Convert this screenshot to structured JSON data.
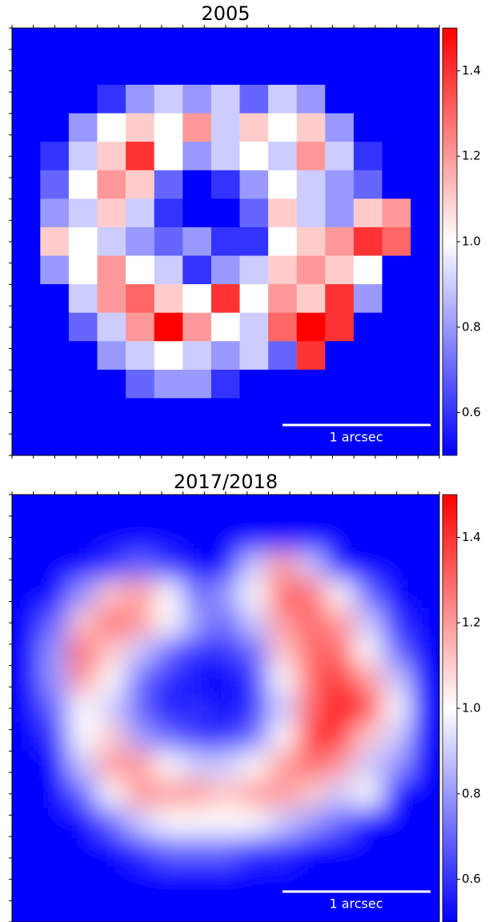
{
  "chart_data": [
    {
      "type": "heatmap",
      "title": "2005",
      "smooth": false,
      "clim": [
        0.5,
        1.5
      ],
      "colormap": [
        "#0000ff",
        "#ffffff",
        "#ff0000"
      ],
      "colorbar_ticks": [
        0.6,
        0.8,
        {
          "value": 1,
          "label": "1.0"
        },
        1.2,
        1.4
      ],
      "scale_bar": "1 arcsec",
      "z": [
        [
          0.5,
          0.5,
          0.5,
          0.5,
          0.5,
          0.5,
          0.5,
          0.5,
          0.5,
          0.5,
          0.5,
          0.5,
          0.5,
          0.5,
          0.5
        ],
        [
          0.5,
          0.5,
          0.5,
          0.5,
          0.5,
          0.5,
          0.5,
          0.5,
          0.5,
          0.5,
          0.5,
          0.5,
          0.5,
          0.5,
          0.5
        ],
        [
          0.5,
          0.5,
          0.5,
          0.6,
          0.8,
          0.9,
          0.8,
          0.9,
          0.7,
          0.9,
          0.8,
          0.5,
          0.5,
          0.5,
          0.5
        ],
        [
          0.5,
          0.5,
          0.8,
          1.0,
          1.1,
          1.0,
          1.2,
          0.9,
          1.1,
          1.0,
          1.1,
          0.8,
          0.5,
          0.5,
          0.5
        ],
        [
          0.5,
          0.6,
          0.9,
          1.1,
          1.4,
          1.0,
          0.8,
          0.9,
          1.0,
          0.9,
          1.2,
          0.9,
          0.6,
          0.5,
          0.5
        ],
        [
          0.5,
          0.7,
          1.0,
          1.2,
          1.1,
          0.7,
          0.5,
          0.6,
          0.8,
          1.0,
          0.9,
          0.8,
          0.7,
          0.5,
          0.5
        ],
        [
          0.5,
          0.8,
          0.9,
          1.1,
          0.9,
          0.6,
          0.5,
          0.5,
          0.7,
          1.1,
          0.9,
          0.8,
          1.1,
          1.2,
          0.5
        ],
        [
          0.5,
          1.1,
          1.0,
          0.9,
          0.8,
          0.7,
          0.8,
          0.6,
          0.6,
          1.0,
          1.1,
          1.2,
          1.4,
          1.3,
          0.5
        ],
        [
          0.5,
          0.8,
          1.0,
          1.2,
          1.0,
          0.9,
          0.6,
          0.8,
          0.9,
          1.1,
          1.2,
          1.1,
          1.0,
          0.5,
          0.5
        ],
        [
          0.5,
          0.5,
          0.9,
          1.2,
          1.3,
          1.1,
          1.0,
          1.4,
          1.0,
          1.2,
          1.1,
          1.4,
          0.8,
          0.5,
          0.5
        ],
        [
          0.5,
          0.5,
          0.7,
          0.9,
          1.2,
          1.5,
          1.2,
          1.0,
          0.9,
          1.3,
          1.5,
          1.4,
          0.5,
          0.5,
          0.5
        ],
        [
          0.5,
          0.5,
          0.5,
          0.8,
          0.9,
          1.0,
          0.9,
          0.8,
          0.9,
          0.7,
          1.4,
          0.5,
          0.5,
          0.5,
          0.5
        ],
        [
          0.5,
          0.5,
          0.5,
          0.5,
          0.7,
          0.8,
          0.8,
          0.6,
          0.5,
          0.5,
          0.5,
          0.5,
          0.5,
          0.5,
          0.5
        ],
        [
          0.5,
          0.5,
          0.5,
          0.5,
          0.5,
          0.5,
          0.5,
          0.5,
          0.5,
          0.5,
          0.5,
          0.5,
          0.5,
          0.5,
          0.5
        ],
        [
          0.5,
          0.5,
          0.5,
          0.5,
          0.5,
          0.5,
          0.5,
          0.5,
          0.5,
          0.5,
          0.5,
          0.5,
          0.5,
          0.5,
          0.5
        ]
      ]
    },
    {
      "type": "heatmap",
      "title": "2017/2018",
      "smooth": true,
      "clim": [
        0.5,
        1.5
      ],
      "colormap": [
        "#0000ff",
        "#ffffff",
        "#ff0000"
      ],
      "colorbar_ticks": [
        0.6,
        0.8,
        {
          "value": 1,
          "label": "1.0"
        },
        1.2,
        1.4
      ],
      "scale_bar": "1 arcsec",
      "z": [
        [
          0.5,
          0.5,
          0.5,
          0.5,
          0.5,
          0.5,
          0.5,
          0.5,
          0.5,
          0.5,
          0.5,
          0.5,
          0.5,
          0.5,
          0.5
        ],
        [
          0.5,
          0.5,
          0.5,
          0.5,
          0.5,
          0.5,
          0.5,
          0.5,
          0.5,
          0.5,
          0.5,
          0.5,
          0.5,
          0.5,
          0.5
        ],
        [
          0.5,
          0.5,
          0.5,
          0.6,
          0.7,
          0.6,
          0.5,
          0.5,
          0.9,
          1.2,
          0.9,
          0.5,
          0.5,
          0.5,
          0.5
        ],
        [
          0.5,
          0.5,
          0.8,
          1.1,
          1.2,
          1.0,
          0.7,
          0.8,
          1.0,
          1.3,
          1.3,
          1.0,
          0.7,
          0.5,
          0.5
        ],
        [
          0.5,
          0.7,
          1.1,
          1.3,
          1.2,
          1.0,
          0.8,
          0.7,
          0.9,
          1.2,
          1.3,
          1.2,
          0.9,
          0.6,
          0.5
        ],
        [
          0.5,
          0.8,
          1.3,
          1.1,
          0.9,
          0.7,
          0.6,
          0.6,
          0.7,
          1.1,
          1.3,
          1.3,
          1.0,
          0.7,
          0.5
        ],
        [
          0.5,
          0.8,
          1.2,
          1.0,
          0.7,
          0.6,
          0.5,
          0.5,
          0.6,
          1.0,
          1.3,
          1.4,
          1.2,
          0.9,
          0.5
        ],
        [
          0.5,
          0.7,
          1.0,
          0.9,
          0.7,
          0.5,
          0.6,
          0.5,
          0.6,
          0.9,
          1.3,
          1.5,
          1.4,
          1.0,
          0.5
        ],
        [
          0.5,
          0.6,
          1.0,
          1.1,
          0.8,
          0.7,
          0.6,
          0.6,
          0.7,
          1.0,
          1.4,
          1.4,
          1.1,
          0.9,
          0.5
        ],
        [
          0.5,
          0.5,
          0.9,
          1.2,
          1.2,
          1.0,
          0.9,
          0.9,
          1.0,
          1.2,
          1.3,
          1.2,
          0.9,
          0.8,
          0.5
        ],
        [
          0.5,
          0.5,
          0.7,
          1.0,
          1.2,
          1.2,
          1.2,
          1.1,
          1.2,
          1.2,
          1.1,
          0.9,
          1.0,
          0.5,
          0.5
        ],
        [
          0.5,
          0.5,
          0.5,
          0.7,
          0.9,
          1.0,
          1.0,
          1.0,
          1.0,
          0.9,
          0.8,
          0.7,
          0.5,
          0.5,
          0.5
        ],
        [
          0.5,
          0.5,
          0.5,
          0.5,
          0.6,
          0.7,
          0.7,
          0.7,
          0.6,
          0.6,
          0.5,
          0.5,
          0.5,
          0.5,
          0.5
        ],
        [
          0.5,
          0.5,
          0.5,
          0.5,
          0.5,
          0.5,
          0.5,
          0.5,
          0.5,
          0.5,
          0.5,
          0.5,
          0.5,
          0.5,
          0.5
        ],
        [
          0.5,
          0.5,
          0.5,
          0.5,
          0.5,
          0.5,
          0.5,
          0.5,
          0.5,
          0.5,
          0.5,
          0.5,
          0.5,
          0.5,
          0.5
        ]
      ]
    }
  ]
}
